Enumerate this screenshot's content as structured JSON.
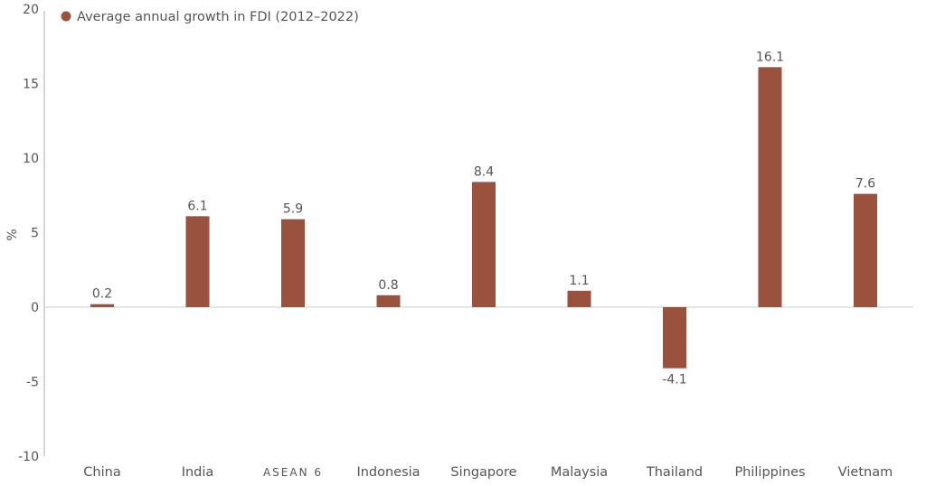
{
  "chart_data": {
    "type": "bar",
    "title": "",
    "xlabel": "",
    "ylabel": "%",
    "ylim": [
      -10,
      20
    ],
    "yticks": [
      -10,
      -5,
      0,
      5,
      10,
      15,
      20
    ],
    "grid": false,
    "legend_placement": "top-left",
    "categories": [
      "China",
      "India",
      "ASEAN 6",
      "Indonesia",
      "Singapore",
      "Malaysia",
      "Thailand",
      "Philippines",
      "Vietnam"
    ],
    "series": [
      {
        "name": "Average annual growth in FDI (2012–2022)",
        "values": [
          0.2,
          6.1,
          5.9,
          0.8,
          8.4,
          1.1,
          -4.1,
          16.1,
          7.6
        ],
        "color": "#9a523c"
      }
    ],
    "data_labels": [
      "0.2",
      "6.1",
      "5.9",
      "0.8",
      "8.4",
      "1.1",
      "-4.1",
      "16.1",
      "7.6"
    ]
  }
}
